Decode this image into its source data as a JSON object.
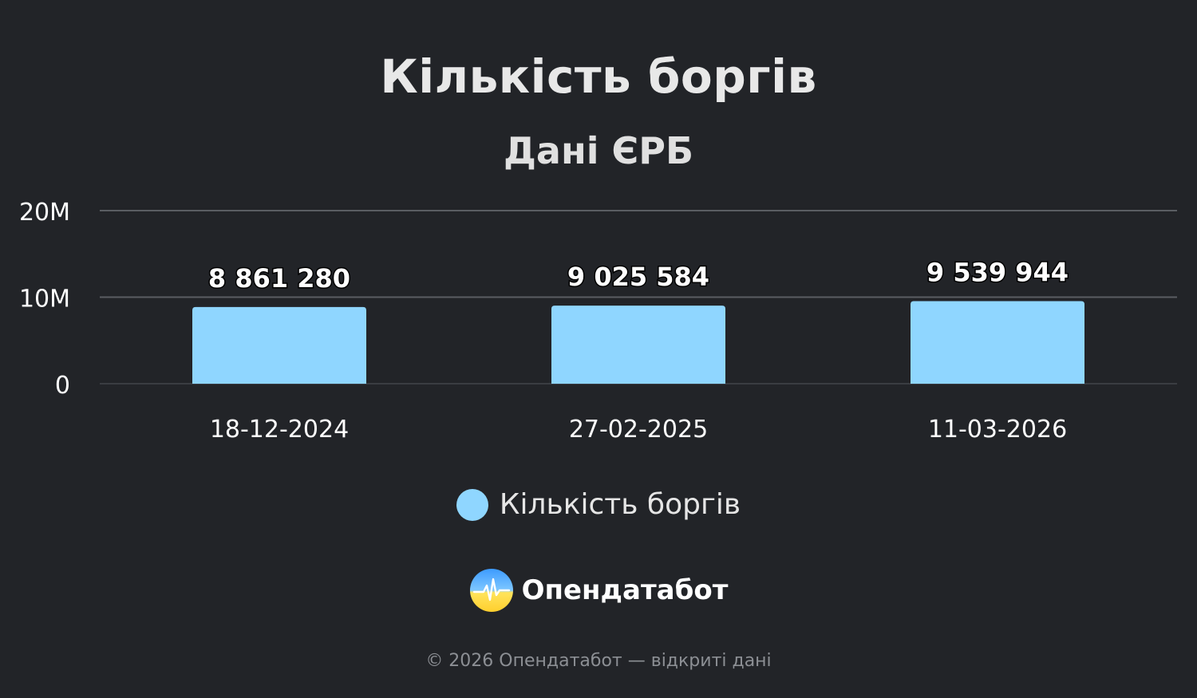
{
  "chart_data": {
    "type": "bar",
    "title": "Кількість боргів",
    "subtitle": "Дані ЄРБ",
    "categories": [
      "18-12-2024",
      "27-02-2025",
      "11-03-2026"
    ],
    "series": [
      {
        "name": "Кількість боргів",
        "values": [
          8861280,
          9025584,
          9539944
        ],
        "value_labels": [
          "8 861 280",
          "9 025 584",
          "9 539 944"
        ]
      }
    ],
    "ylim": [
      0,
      20000000
    ],
    "yticks": [
      0,
      10000000,
      20000000
    ],
    "ytick_labels": [
      "0",
      "10M",
      "20M"
    ],
    "grid": true,
    "legend_position": "bottom",
    "colors": {
      "bar": "#8fd6ff",
      "grid": "#5a5d62",
      "background": "#222428"
    }
  },
  "brand": {
    "name": "Опендатабот",
    "icon": "opendatabot-logo-icon"
  },
  "footer": {
    "text": "© 2026 Опендатабот — відкриті дані"
  }
}
